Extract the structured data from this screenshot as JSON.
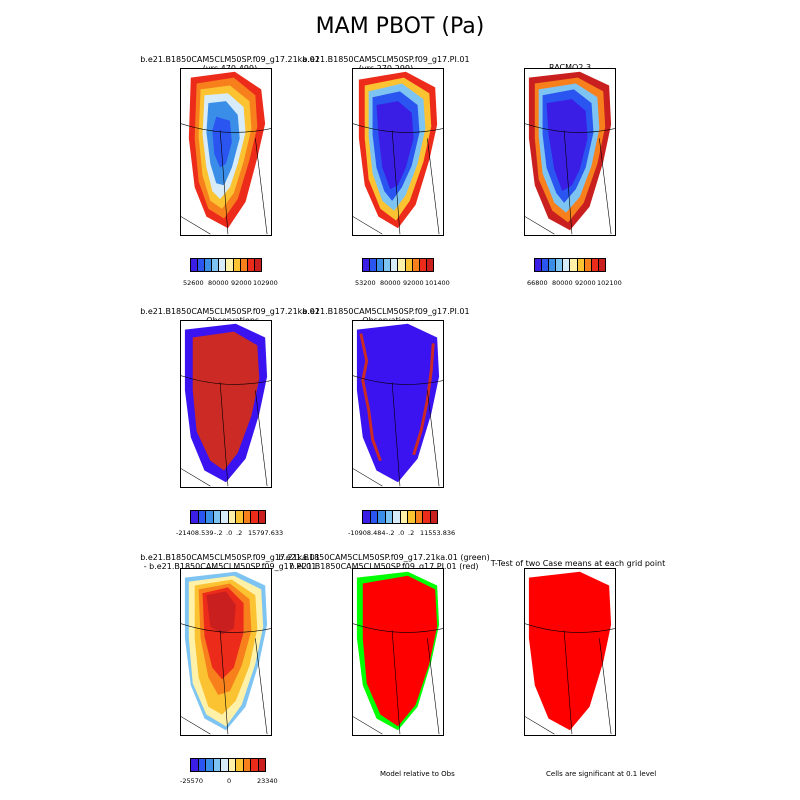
{
  "title": "MAM PBOT (Pa)",
  "row1": {
    "p1": {
      "line1": "b.e21.B1850CAM5CLM50SP.f09_g17.21ka.01",
      "line2": "(yrs 470-499)",
      "cbar": [
        "52600",
        "80000",
        "92000",
        "102900"
      ]
    },
    "p2": {
      "line1": "b.e21.B1850CAM5CLM50SP.f09_g17.PI.01",
      "line2": "(yrs 270-299)",
      "cbar": [
        "53200",
        "80000",
        "92000",
        "101400"
      ]
    },
    "p3": {
      "line1": "RACMO2.3",
      "cbar": [
        "66800",
        "80000",
        "92000",
        "102100"
      ]
    }
  },
  "row2": {
    "p1": {
      "line1": "b.e21.B1850CAM5CLM50SP.f09_g17.21ka.01",
      "line2": "- Observations",
      "cbar": [
        "-21408.539",
        "-.2",
        ".0",
        ".2",
        "15797.633"
      ]
    },
    "p2": {
      "line1": "b.e21.B1850CAM5CLM50SP.f09_g17.PI.01",
      "line2": "- Observations",
      "cbar": [
        "-10908.484",
        "-.2",
        ".0",
        ".2",
        "11553.836"
      ]
    }
  },
  "row3": {
    "p1": {
      "line1": "b.e21.B1850CAM5CLM50SP.f09_g17.21ka.01",
      "line2": "- b.e21.B1850CAM5CLM50SP.f09_g17.PI.01",
      "cbar": [
        "-25570",
        "0",
        "23340"
      ]
    },
    "p2": {
      "line1": "b.e21.B1850CAM5CLM50SP.f09_g17.21ka.01 (green)",
      "line2": "b.e21.B1850CAM5CLM50SP.f09_g17.PI.01 (red)",
      "note": "Model relative to Obs"
    },
    "p3": {
      "line1": "T-Test of two Case means at each grid point",
      "note": "Cells are significant at 0.1 level"
    }
  },
  "colors": {
    "scale": [
      "#3b1ee6",
      "#2a55f0",
      "#3a8ee8",
      "#7ec4f2",
      "#d7ecf8",
      "#fff2a8",
      "#fbc232",
      "#f7801d",
      "#ec2b1a",
      "#c91f1f"
    ],
    "diff_red": "#cc2a24",
    "diff_blue": "#3a13f0",
    "sig_red": "#ff0000",
    "model_green": "#00ff00"
  }
}
